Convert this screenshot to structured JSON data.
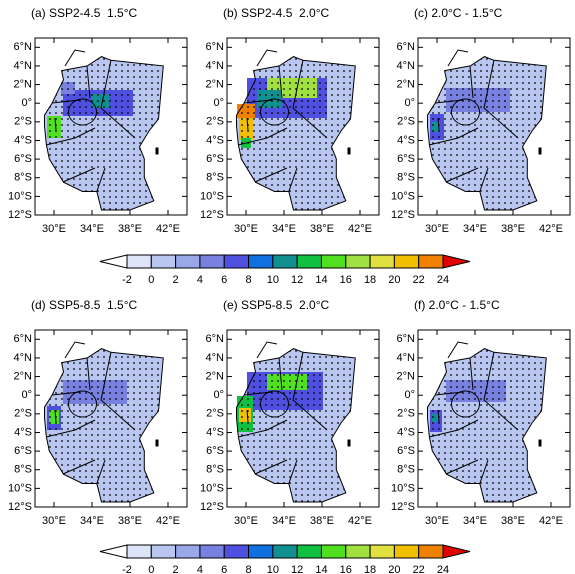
{
  "panels": [
    {
      "title": "(a) SSP2-4.5  1.5°C"
    },
    {
      "title": "(b) SSP2-4.5  2.0°C"
    },
    {
      "title": "(c) 2.0°C - 1.5°C"
    },
    {
      "title": "(d) SSP5-8.5  1.5°C"
    },
    {
      "title": "(e) SSP5-8.5  2.0°C"
    },
    {
      "title": "(f) 2.0°C - 1.5°C"
    }
  ],
  "xlim": [
    28,
    44
  ],
  "ylim": [
    -12,
    7
  ],
  "xticks": [
    {
      "value": 30,
      "label": "30°E"
    },
    {
      "value": 34,
      "label": "34°E"
    },
    {
      "value": 38,
      "label": "38°E"
    },
    {
      "value": 42,
      "label": "42°E"
    }
  ],
  "yticks": [
    {
      "value": 6,
      "label": "6°N"
    },
    {
      "value": 4,
      "label": "4°N"
    },
    {
      "value": 2,
      "label": "2°N"
    },
    {
      "value": 0,
      "label": "0°"
    },
    {
      "value": -2,
      "label": "2°S"
    },
    {
      "value": -4,
      "label": "4°S"
    },
    {
      "value": -6,
      "label": "6°S"
    },
    {
      "value": -8,
      "label": "8°S"
    },
    {
      "value": -10,
      "label": "10°S"
    },
    {
      "value": -12,
      "label": "12°S"
    }
  ],
  "colorbar": {
    "levels": [
      -2,
      0,
      2,
      4,
      6,
      8,
      10,
      12,
      14,
      16,
      18,
      20,
      22,
      24
    ],
    "colors": [
      "#ffffff",
      "#dde4f7",
      "#b8c6f0",
      "#98a8e8",
      "#7880e0",
      "#5050e0",
      "#1070e0",
      "#109090",
      "#10c040",
      "#50e020",
      "#a0e040",
      "#e0e040",
      "#f0c000",
      "#f08000",
      "#e00000"
    ]
  }
}
